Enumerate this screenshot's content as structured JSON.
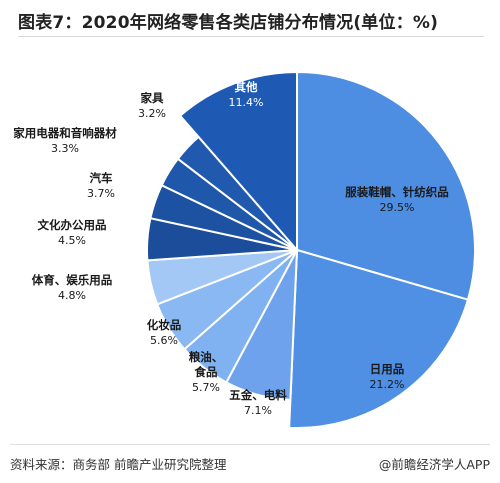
{
  "page": {
    "title": "图表7：2020年网络零售各类店铺分布情况(单位：%)",
    "source": "资料来源：商务部 前瞻产业研究院整理",
    "credit": "@前瞻经济学人APP"
  },
  "chart_data": {
    "type": "pie",
    "title": "图表7：2020年网络零售各类店铺分布情况(单位：%)",
    "unit": "%",
    "start_angle_deg": 0,
    "direction": "clockwise",
    "slices": [
      {
        "name": "服装鞋帽、针纺织品",
        "value": 29.5,
        "label": "29.5%",
        "color": "#4d8de2"
      },
      {
        "name": "日用品",
        "value": 21.2,
        "label": "21.2%",
        "color": "#4f8fe4"
      },
      {
        "name": "五金、电料",
        "value": 7.1,
        "label": "7.1%",
        "color": "#6fa2ec"
      },
      {
        "name": "粮油、食品",
        "value": 5.7,
        "label": "5.7%",
        "color": "#80b1f0"
      },
      {
        "name": "化妆品",
        "value": 5.6,
        "label": "5.6%",
        "color": "#8ab8f2"
      },
      {
        "name": "体育、娱乐用品",
        "value": 4.8,
        "label": "4.8%",
        "color": "#a4c8f6"
      },
      {
        "name": "文化办公用品",
        "value": 4.5,
        "label": "4.5%",
        "color": "#1b4d9a"
      },
      {
        "name": "汽车",
        "value": 3.7,
        "label": "3.7%",
        "color": "#1d52a3"
      },
      {
        "name": "家用电器和音响器材",
        "value": 3.3,
        "label": "3.3%",
        "color": "#1f57aa"
      },
      {
        "name": "家具",
        "value": 3.2,
        "label": "3.2%",
        "color": "#2059ae"
      },
      {
        "name": "其他",
        "value": 11.4,
        "label": "11.4%",
        "color": "#1e5ab4"
      }
    ]
  }
}
